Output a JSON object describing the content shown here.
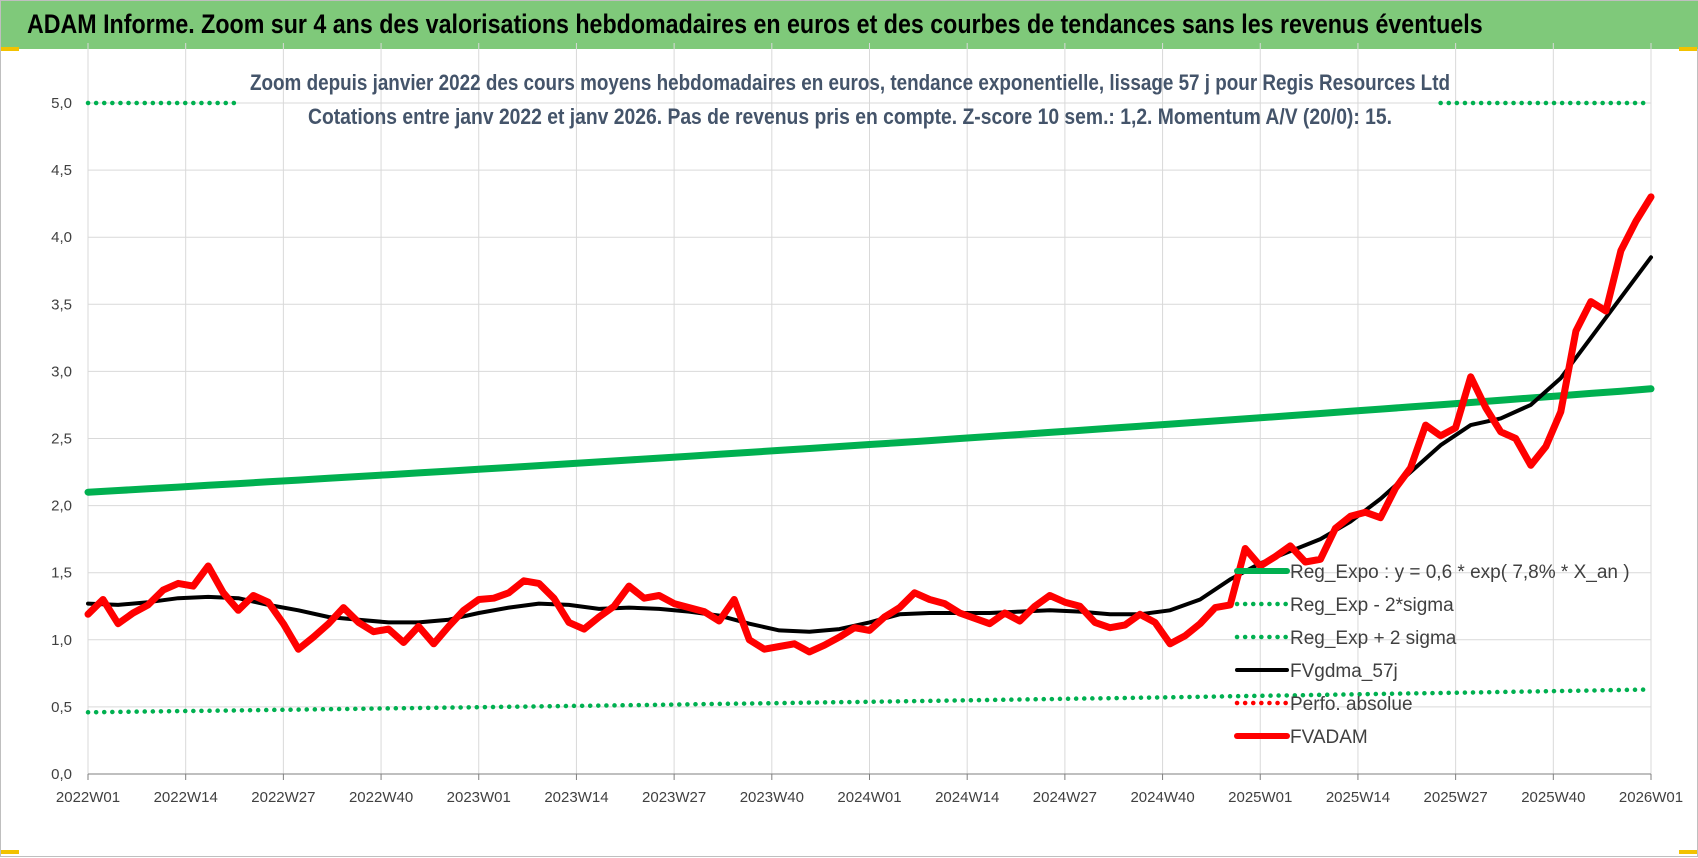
{
  "header": {
    "banner_title": "ADAM Informe. Zoom sur 4 ans des valorisations hebdomadaires en euros et des courbes de tendances sans les revenus éventuels"
  },
  "colors": {
    "banner_bg": "#7fc97a",
    "trend_green": "#00b050",
    "fvgdma_black": "#000000",
    "fvadam_red": "#ff0000",
    "perfo_red": "#ff0000",
    "grid": "#d9d9d9",
    "title_text": "#44546a"
  },
  "chart_data": {
    "type": "line",
    "title_lines": [
      "Zoom depuis janvier 2022 des cours moyens hebdomadaires en euros, tendance exponentielle, lissage 57 j pour Regis Resources Ltd",
      "Cotations entre janv 2022 et janv 2026. Pas de revenus pris en compte. Z-score 10 sem.: 1,2. Momentum A/V (20/0): 15."
    ],
    "xlabel": "",
    "ylabel": "",
    "ylim": [
      0,
      5
    ],
    "y_ticks": [
      "0,0",
      "0,5",
      "1,0",
      "1,5",
      "2,0",
      "2,5",
      "3,0",
      "3,5",
      "4,0",
      "4,5",
      "5,0"
    ],
    "x_ticks": [
      "2022W01",
      "2022W14",
      "2022W27",
      "2022W40",
      "2023W01",
      "2023W14",
      "2023W27",
      "2023W40",
      "2024W01",
      "2024W14",
      "2024W27",
      "2024W40",
      "2025W01",
      "2025W14",
      "2025W27",
      "2025W40",
      "2026W01"
    ],
    "grid": true,
    "legend_position": "bottom-right",
    "x_week_range": [
      0,
      208
    ],
    "series": [
      {
        "name": "Reg_Expo : y = 0,6 * exp( 7,8% *  X_an )",
        "style": "solid-thick",
        "color": "#00b050",
        "x": [
          0,
          208
        ],
        "y": [
          2.1,
          2.87
        ],
        "curve": "exponential"
      },
      {
        "name": "Reg_Exp - 2*sigma",
        "style": "dotted",
        "color": "#00b050",
        "x": [
          0,
          208
        ],
        "y": [
          0.46,
          0.63
        ],
        "curve": "exponential"
      },
      {
        "name": "Reg_Exp + 2 sigma",
        "style": "dotted",
        "color": "#00b050",
        "segments": [
          {
            "x": [
              0,
              20
            ],
            "y": [
              5.0,
              5.0
            ]
          },
          {
            "x": [
              180,
              208
            ],
            "y": [
              5.0,
              5.0
            ]
          }
        ]
      },
      {
        "name": "FVgdma_57j",
        "style": "solid",
        "color": "#000000",
        "x": [
          0,
          4,
          8,
          12,
          16,
          20,
          24,
          28,
          32,
          36,
          40,
          44,
          48,
          52,
          56,
          60,
          64,
          68,
          72,
          76,
          80,
          84,
          88,
          92,
          96,
          100,
          104,
          108,
          112,
          116,
          120,
          124,
          128,
          132,
          136,
          140,
          144,
          148,
          152,
          156,
          160,
          164,
          168,
          172,
          176,
          180,
          184,
          188,
          192,
          196,
          200,
          204,
          208
        ],
        "y": [
          1.27,
          1.26,
          1.28,
          1.31,
          1.32,
          1.31,
          1.26,
          1.22,
          1.17,
          1.15,
          1.13,
          1.13,
          1.15,
          1.2,
          1.24,
          1.27,
          1.26,
          1.23,
          1.24,
          1.23,
          1.21,
          1.18,
          1.12,
          1.07,
          1.06,
          1.08,
          1.13,
          1.19,
          1.2,
          1.2,
          1.2,
          1.21,
          1.22,
          1.21,
          1.19,
          1.19,
          1.22,
          1.3,
          1.45,
          1.57,
          1.66,
          1.75,
          1.88,
          2.05,
          2.25,
          2.45,
          2.6,
          2.65,
          2.75,
          2.95,
          3.25,
          3.55,
          3.85
        ]
      },
      {
        "name": "Perfo. absolue",
        "style": "dotted",
        "color": "#ff0000",
        "x": [],
        "y": []
      },
      {
        "name": "FVADAM",
        "style": "solid-thick",
        "color": "#ff0000",
        "x": [
          0,
          2,
          4,
          6,
          8,
          10,
          12,
          14,
          16,
          18,
          20,
          22,
          24,
          26,
          28,
          30,
          32,
          34,
          36,
          38,
          40,
          42,
          44,
          46,
          48,
          50,
          52,
          54,
          56,
          58,
          60,
          62,
          64,
          66,
          68,
          70,
          72,
          74,
          76,
          78,
          80,
          82,
          84,
          86,
          88,
          90,
          92,
          94,
          96,
          98,
          100,
          102,
          104,
          106,
          108,
          110,
          112,
          114,
          116,
          118,
          120,
          122,
          124,
          126,
          128,
          130,
          132,
          134,
          136,
          138,
          140,
          142,
          144,
          146,
          148,
          150,
          152,
          154,
          156,
          158,
          160,
          162,
          164,
          166,
          168,
          170,
          172,
          174,
          176,
          178,
          180,
          182,
          184,
          186,
          188,
          190,
          192,
          194,
          196,
          198,
          200,
          202,
          204,
          206,
          208
        ],
        "y": [
          1.19,
          1.3,
          1.12,
          1.2,
          1.26,
          1.37,
          1.42,
          1.4,
          1.55,
          1.35,
          1.22,
          1.33,
          1.28,
          1.12,
          0.93,
          1.02,
          1.12,
          1.24,
          1.13,
          1.06,
          1.08,
          0.98,
          1.1,
          0.97,
          1.1,
          1.22,
          1.3,
          1.31,
          1.35,
          1.44,
          1.42,
          1.31,
          1.13,
          1.08,
          1.17,
          1.25,
          1.4,
          1.31,
          1.33,
          1.27,
          1.24,
          1.21,
          1.14,
          1.3,
          1.0,
          0.93,
          0.95,
          0.97,
          0.91,
          0.96,
          1.02,
          1.09,
          1.07,
          1.17,
          1.24,
          1.35,
          1.3,
          1.27,
          1.2,
          1.16,
          1.12,
          1.2,
          1.14,
          1.25,
          1.33,
          1.28,
          1.25,
          1.13,
          1.09,
          1.11,
          1.19,
          1.13,
          0.97,
          1.03,
          1.12,
          1.24,
          1.26,
          1.68,
          1.55,
          1.62,
          1.7,
          1.58,
          1.6,
          1.83,
          1.92,
          1.95,
          1.91,
          2.13,
          2.28,
          2.6,
          2.52,
          2.58,
          2.96,
          2.73,
          2.55,
          2.5,
          2.3,
          2.44,
          2.7,
          3.3,
          3.52,
          3.45,
          3.9,
          4.12,
          4.3
        ]
      }
    ]
  }
}
